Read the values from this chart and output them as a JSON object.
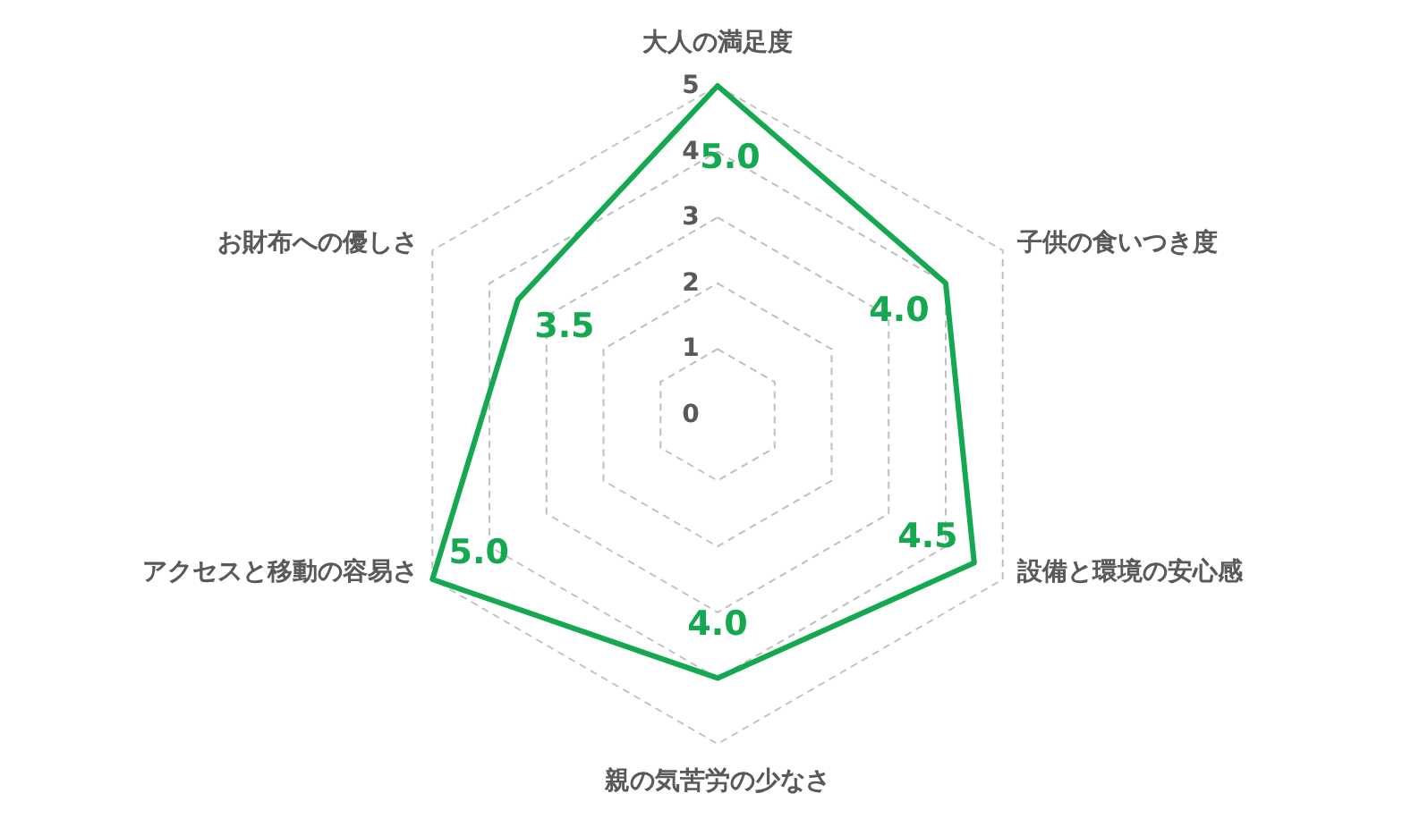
{
  "chart_data": {
    "type": "radar",
    "categories": [
      "大人の満足度",
      "子供の食いつき度",
      "設備と環境の安心感",
      "親の気苦労の少なさ",
      "アクセスと移動の容易さ",
      "お財布への優しさ"
    ],
    "series": [
      {
        "color": "#14a850",
        "values": [
          5.0,
          4.0,
          4.5,
          4.0,
          5.0,
          3.5
        ],
        "value_labels": [
          "5.0",
          "4.0",
          "4.5",
          "4.0",
          "5.0",
          "3.5"
        ]
      }
    ],
    "ylim": [
      0,
      5
    ],
    "yticks": [
      0,
      1,
      2,
      3,
      4,
      5
    ],
    "grid": true
  }
}
